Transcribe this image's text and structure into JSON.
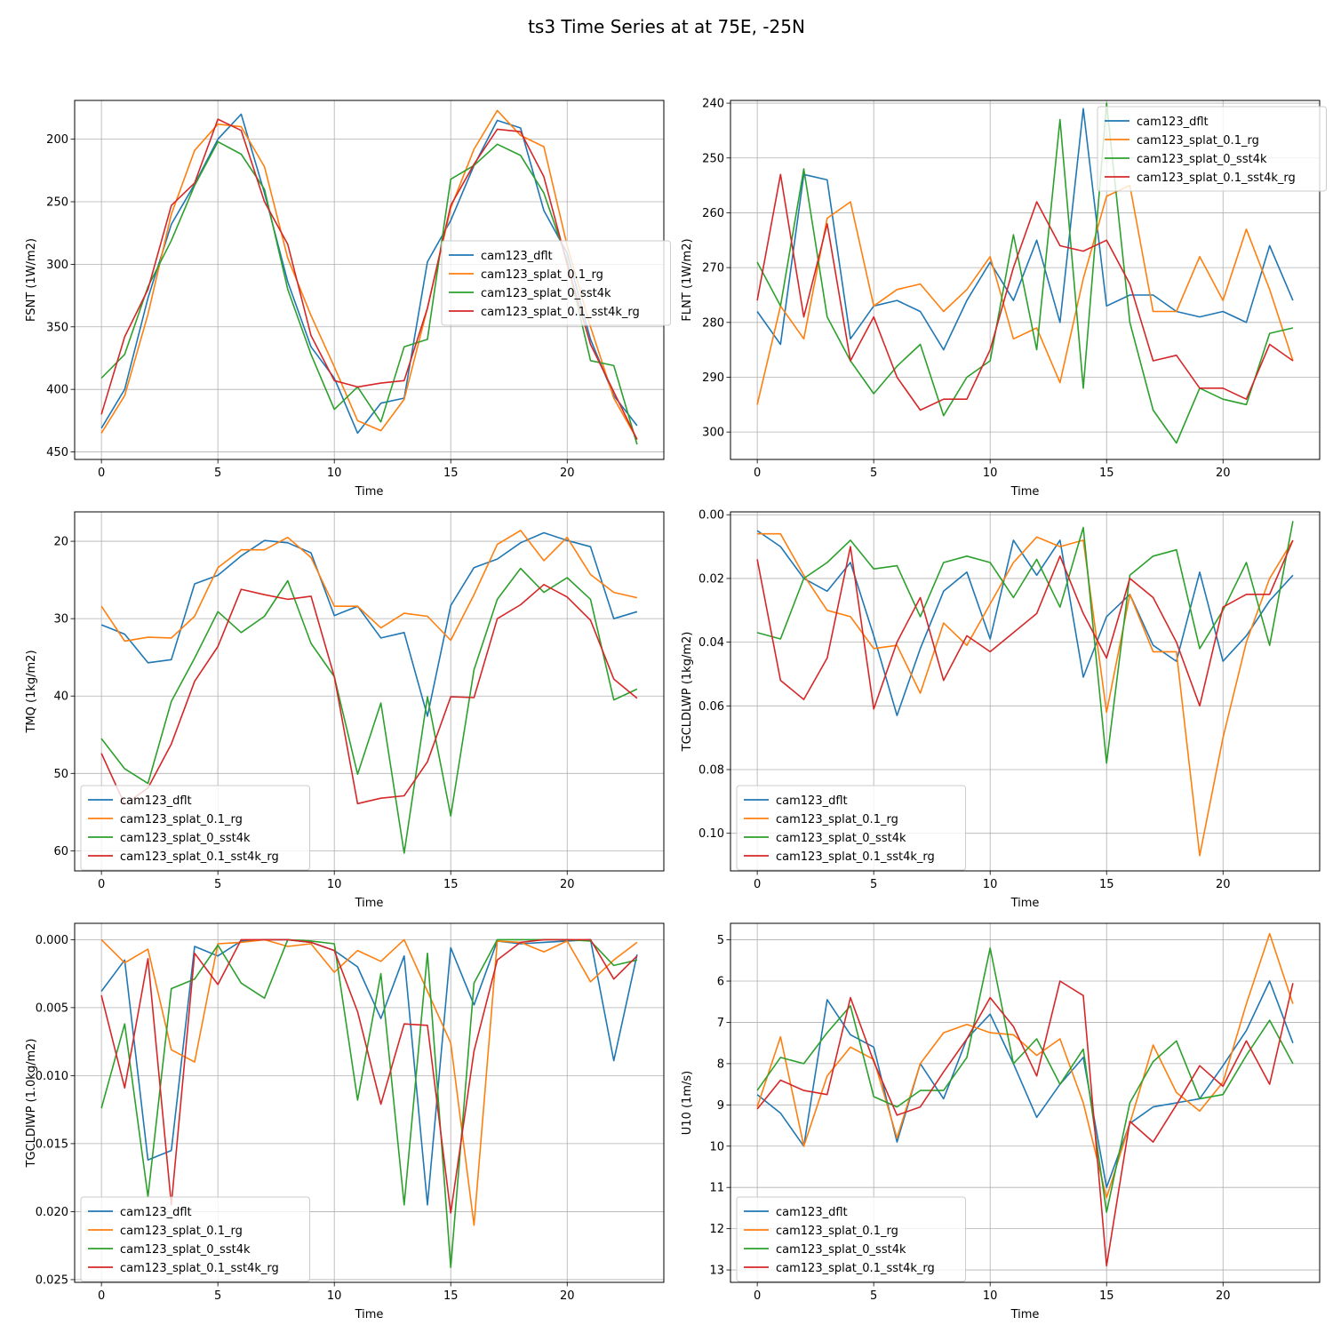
{
  "figure": {
    "suptitle": "ts3 Time Series at at 75E, -25N"
  },
  "colors": [
    "#1f77b4",
    "#ff7f0e",
    "#2ca02c",
    "#d62728"
  ],
  "chart_data": [
    {
      "type": "line",
      "xlabel": "Time",
      "ylabel": "FSNT (1W/m2)",
      "ylim": [
        456,
        169
      ],
      "y_inverted": true,
      "xlim": [
        -1.15,
        24.15
      ],
      "xticks": [
        0,
        5,
        10,
        15,
        20
      ],
      "yticks": [
        200,
        250,
        300,
        350,
        400,
        450
      ],
      "grid": true,
      "legend_location": "center right",
      "x": [
        0,
        1,
        2,
        3,
        4,
        5,
        6,
        7,
        8,
        9,
        10,
        11,
        12,
        13,
        14,
        15,
        16,
        17,
        18,
        19,
        20,
        21,
        22,
        23
      ],
      "series": [
        {
          "name": "cam123_dflt",
          "values": [
            431,
            400,
            327,
            268,
            236,
            200,
            180,
            243,
            314,
            366,
            391,
            435,
            411,
            407,
            298,
            265,
            221,
            185,
            191,
            257,
            291,
            360,
            405,
            429
          ]
        },
        {
          "name": "cam123_splat_0.1_rg",
          "values": [
            435,
            405,
            340,
            260,
            209,
            188,
            190,
            222,
            295,
            341,
            382,
            425,
            433,
            408,
            335,
            255,
            208,
            177,
            197,
            206,
            285,
            350,
            407,
            440
          ]
        },
        {
          "name": "cam123_splat_0_sst4k",
          "values": [
            391,
            372,
            318,
            281,
            237,
            202,
            212,
            240,
            320,
            372,
            416,
            398,
            426,
            366,
            360,
            232,
            221,
            204,
            213,
            243,
            297,
            377,
            381,
            444
          ]
        },
        {
          "name": "cam123_splat_0.1_sst4k_rg",
          "values": [
            420,
            358,
            320,
            253,
            235,
            184,
            193,
            250,
            284,
            357,
            393,
            398,
            395,
            393,
            335,
            253,
            220,
            192,
            194,
            230,
            300,
            364,
            402,
            440
          ]
        }
      ]
    },
    {
      "type": "line",
      "xlabel": "Time",
      "ylabel": "FLNT (1W/m2)",
      "ylim": [
        305,
        239.5
      ],
      "y_inverted": true,
      "xlim": [
        -1.15,
        24.15
      ],
      "xticks": [
        0,
        5,
        10,
        15,
        20
      ],
      "yticks": [
        240,
        250,
        260,
        270,
        280,
        290,
        300
      ],
      "grid": true,
      "legend_location": "upper right",
      "x": [
        0,
        1,
        2,
        3,
        4,
        5,
        6,
        7,
        8,
        9,
        10,
        11,
        12,
        13,
        14,
        15,
        16,
        17,
        18,
        19,
        20,
        21,
        22,
        23
      ],
      "series": [
        {
          "name": "cam123_dflt",
          "values": [
            278,
            284,
            253,
            254,
            283,
            277,
            276,
            278,
            285,
            276,
            269,
            276,
            265,
            280,
            241,
            277,
            275,
            275,
            278,
            279,
            278,
            280,
            266,
            276
          ]
        },
        {
          "name": "cam123_splat_0.1_rg",
          "values": [
            295,
            277,
            283,
            261,
            258,
            277,
            274,
            273,
            278,
            274,
            268,
            283,
            281,
            291,
            272,
            257,
            255,
            278,
            278,
            268,
            276,
            263,
            274,
            287
          ]
        },
        {
          "name": "cam123_splat_0_sst4k",
          "values": [
            269,
            277,
            252,
            279,
            287,
            293,
            288,
            284,
            297,
            290,
            287,
            264,
            285,
            243,
            292,
            240,
            280,
            296,
            302,
            292,
            294,
            295,
            282,
            281
          ]
        },
        {
          "name": "cam123_splat_0.1_sst4k_rg",
          "values": [
            276,
            253,
            279,
            262,
            287,
            279,
            290,
            296,
            294,
            294,
            285,
            270,
            258,
            266,
            267,
            265,
            273,
            287,
            286,
            292,
            292,
            294,
            284,
            287
          ]
        }
      ]
    },
    {
      "type": "line",
      "xlabel": "Time",
      "ylabel": "TMQ (1kg/m2)",
      "ylim": [
        62.6,
        16.2
      ],
      "y_inverted": true,
      "xlim": [
        -1.15,
        24.15
      ],
      "xticks": [
        0,
        5,
        10,
        15,
        20
      ],
      "yticks": [
        20,
        30,
        40,
        50,
        60
      ],
      "grid": true,
      "legend_location": "lower left",
      "x": [
        0,
        1,
        2,
        3,
        4,
        5,
        6,
        7,
        8,
        9,
        10,
        11,
        12,
        13,
        14,
        15,
        16,
        17,
        18,
        19,
        20,
        21,
        22,
        23
      ],
      "series": [
        {
          "name": "cam123_dflt",
          "values": [
            30.8,
            32.0,
            35.7,
            35.3,
            25.5,
            24.4,
            21.9,
            19.9,
            20.2,
            21.5,
            29.6,
            28.4,
            32.5,
            31.8,
            42.6,
            28.3,
            23.4,
            22.3,
            20.2,
            18.9,
            19.9,
            20.7,
            30.0,
            29.1
          ]
        },
        {
          "name": "cam123_splat_0.1_rg",
          "values": [
            28.4,
            32.9,
            32.4,
            32.5,
            29.7,
            23.4,
            21.1,
            21.1,
            19.5,
            22.1,
            28.4,
            28.4,
            31.2,
            29.3,
            29.7,
            32.8,
            26.9,
            20.4,
            18.6,
            22.5,
            19.5,
            24.3,
            26.6,
            27.3
          ]
        },
        {
          "name": "cam123_splat_0_sst4k",
          "values": [
            45.5,
            49.4,
            51.3,
            40.7,
            35.1,
            29.1,
            31.8,
            29.7,
            25.1,
            33.2,
            37.5,
            50.1,
            40.9,
            60.3,
            40.1,
            55.5,
            36.6,
            27.5,
            23.5,
            26.6,
            24.7,
            27.5,
            40.5,
            39.1
          ]
        },
        {
          "name": "cam123_splat_0.1_sst4k_rg",
          "values": [
            47.4,
            54.0,
            51.9,
            46.2,
            38.1,
            33.6,
            26.2,
            26.9,
            27.5,
            27.1,
            37.5,
            53.9,
            53.2,
            52.9,
            48.5,
            40.1,
            40.2,
            30.0,
            28.2,
            25.6,
            27.2,
            30.2,
            37.8,
            40.3
          ]
        }
      ]
    },
    {
      "type": "line",
      "xlabel": "Time",
      "ylabel": "TGCLDLWP (1kg/m2)",
      "ylim": [
        0.1118,
        -0.0009
      ],
      "y_inverted": true,
      "xlim": [
        -1.15,
        24.15
      ],
      "xticks": [
        0,
        5,
        10,
        15,
        20
      ],
      "yticks": [
        0.0,
        0.02,
        0.04,
        0.06,
        0.08,
        0.1
      ],
      "ytick_labels": [
        "0.00",
        "0.02",
        "0.04",
        "0.06",
        "0.08",
        "0.10"
      ],
      "grid": true,
      "legend_location": "lower left",
      "x": [
        0,
        1,
        2,
        3,
        4,
        5,
        6,
        7,
        8,
        9,
        10,
        11,
        12,
        13,
        14,
        15,
        16,
        17,
        18,
        19,
        20,
        21,
        22,
        23
      ],
      "series": [
        {
          "name": "cam123_dflt",
          "values": [
            0.005,
            0.01,
            0.02,
            0.024,
            0.015,
            0.038,
            0.063,
            0.042,
            0.024,
            0.018,
            0.039,
            0.008,
            0.019,
            0.008,
            0.051,
            0.032,
            0.025,
            0.041,
            0.046,
            0.018,
            0.046,
            0.038,
            0.027,
            0.019
          ]
        },
        {
          "name": "cam123_splat_0.1_rg",
          "values": [
            0.006,
            0.006,
            0.019,
            0.03,
            0.032,
            0.042,
            0.041,
            0.056,
            0.034,
            0.041,
            0.028,
            0.015,
            0.007,
            0.01,
            0.008,
            0.062,
            0.025,
            0.043,
            0.043,
            0.107,
            0.07,
            0.04,
            0.02,
            0.008
          ]
        },
        {
          "name": "cam123_splat_0_sst4k",
          "values": [
            0.037,
            0.039,
            0.02,
            0.015,
            0.008,
            0.017,
            0.016,
            0.032,
            0.015,
            0.013,
            0.015,
            0.026,
            0.014,
            0.029,
            0.004,
            0.078,
            0.019,
            0.013,
            0.011,
            0.042,
            0.03,
            0.015,
            0.041,
            0.002
          ]
        },
        {
          "name": "cam123_splat_0.1_sst4k_rg",
          "values": [
            0.014,
            0.052,
            0.058,
            0.045,
            0.01,
            0.061,
            0.04,
            0.026,
            0.052,
            0.038,
            0.043,
            0.037,
            0.031,
            0.013,
            0.031,
            0.045,
            0.02,
            0.026,
            0.04,
            0.06,
            0.029,
            0.025,
            0.025,
            0.008
          ]
        }
      ]
    },
    {
      "type": "line",
      "xlabel": "Time",
      "ylabel": "TGCLDIWP (1.0kg/m2)",
      "ylim": [
        0.0252,
        -0.0012
      ],
      "y_inverted": true,
      "xlim": [
        -1.15,
        24.15
      ],
      "xticks": [
        0,
        5,
        10,
        15,
        20
      ],
      "yticks": [
        0.0,
        0.005,
        0.01,
        0.015,
        0.02,
        0.025
      ],
      "ytick_labels": [
        "0.000",
        "0.005",
        "0.010",
        "0.015",
        "0.020",
        "0.025"
      ],
      "grid": true,
      "legend_location": "lower left",
      "x": [
        0,
        1,
        2,
        3,
        4,
        5,
        6,
        7,
        8,
        9,
        10,
        11,
        12,
        13,
        14,
        15,
        16,
        17,
        18,
        19,
        20,
        21,
        22,
        23
      ],
      "series": [
        {
          "name": "cam123_dflt",
          "values": [
            0.0038,
            0.0015,
            0.0162,
            0.0155,
            0.0005,
            0.0012,
            0.0001,
            0.0,
            0.0,
            0.0002,
            0.0008,
            0.002,
            0.0058,
            0.0012,
            0.0195,
            0.0006,
            0.0048,
            0.0001,
            0.0003,
            0.0002,
            0.0001,
            0.0,
            0.0089,
            0.0011
          ]
        },
        {
          "name": "cam123_splat_0.1_rg",
          "values": [
            0.0,
            0.0017,
            0.0007,
            0.0081,
            0.009,
            0.0003,
            0.0002,
            0.0,
            0.0005,
            0.0003,
            0.0024,
            0.0008,
            0.0016,
            0.0,
            0.0038,
            0.0076,
            0.021,
            0.0001,
            0.0002,
            0.0009,
            0.0001,
            0.0031,
            0.0015,
            0.0002
          ]
        },
        {
          "name": "cam123_splat_0_sst4k",
          "values": [
            0.0124,
            0.0062,
            0.0189,
            0.0036,
            0.0029,
            0.0004,
            0.0032,
            0.0043,
            0.0,
            0.0001,
            0.0003,
            0.0118,
            0.0025,
            0.0195,
            0.001,
            0.0241,
            0.0032,
            0.0,
            0.0,
            0.0,
            0.0,
            0.0001,
            0.0019,
            0.0015
          ]
        },
        {
          "name": "cam123_splat_0.1_sst4k_rg",
          "values": [
            0.0041,
            0.0109,
            0.0014,
            0.0195,
            0.001,
            0.0033,
            0.0,
            0.0,
            0.0,
            0.0002,
            0.0008,
            0.0053,
            0.0121,
            0.0062,
            0.0063,
            0.0201,
            0.0082,
            0.0015,
            0.0002,
            0.0,
            0.0,
            0.0,
            0.0029,
            0.0012
          ]
        }
      ]
    },
    {
      "type": "line",
      "xlabel": "Time",
      "ylabel": "U10 (1m/s)",
      "ylim": [
        13.3,
        4.6
      ],
      "y_inverted": true,
      "xlim": [
        -1.15,
        24.15
      ],
      "xticks": [
        0,
        5,
        10,
        15,
        20
      ],
      "yticks": [
        5,
        6,
        7,
        8,
        9,
        10,
        11,
        12,
        13
      ],
      "grid": true,
      "legend_location": "lower left",
      "x": [
        0,
        1,
        2,
        3,
        4,
        5,
        6,
        7,
        8,
        9,
        10,
        11,
        12,
        13,
        14,
        15,
        16,
        17,
        18,
        19,
        20,
        21,
        22,
        23
      ],
      "series": [
        {
          "name": "cam123_dflt",
          "values": [
            8.75,
            9.2,
            10.0,
            6.45,
            7.3,
            7.6,
            9.9,
            8.0,
            8.85,
            7.4,
            6.8,
            8.0,
            9.3,
            8.5,
            7.85,
            11.0,
            9.45,
            9.05,
            8.95,
            8.85,
            8.05,
            7.2,
            6.0,
            7.5
          ]
        },
        {
          "name": "cam123_splat_0.1_rg",
          "values": [
            9.05,
            7.35,
            10.0,
            8.3,
            7.6,
            7.9,
            9.8,
            8.0,
            7.25,
            7.05,
            7.25,
            7.3,
            7.8,
            7.4,
            8.95,
            11.25,
            9.45,
            7.55,
            8.7,
            9.15,
            8.45,
            6.55,
            4.85,
            6.55
          ]
        },
        {
          "name": "cam123_splat_0_sst4k",
          "values": [
            8.65,
            7.85,
            8.0,
            7.25,
            6.6,
            8.8,
            9.05,
            8.65,
            8.65,
            7.85,
            5.2,
            8.0,
            7.4,
            8.5,
            7.65,
            11.6,
            8.95,
            7.95,
            7.45,
            8.85,
            8.75,
            7.8,
            6.95,
            8.0
          ]
        },
        {
          "name": "cam123_splat_0.1_sst4k_rg",
          "values": [
            9.1,
            8.4,
            8.65,
            8.75,
            6.4,
            7.95,
            9.25,
            9.05,
            8.2,
            7.4,
            6.4,
            7.1,
            8.3,
            6.0,
            6.35,
            12.9,
            9.4,
            9.9,
            9.0,
            8.05,
            8.55,
            7.45,
            8.5,
            6.05
          ]
        }
      ]
    }
  ]
}
